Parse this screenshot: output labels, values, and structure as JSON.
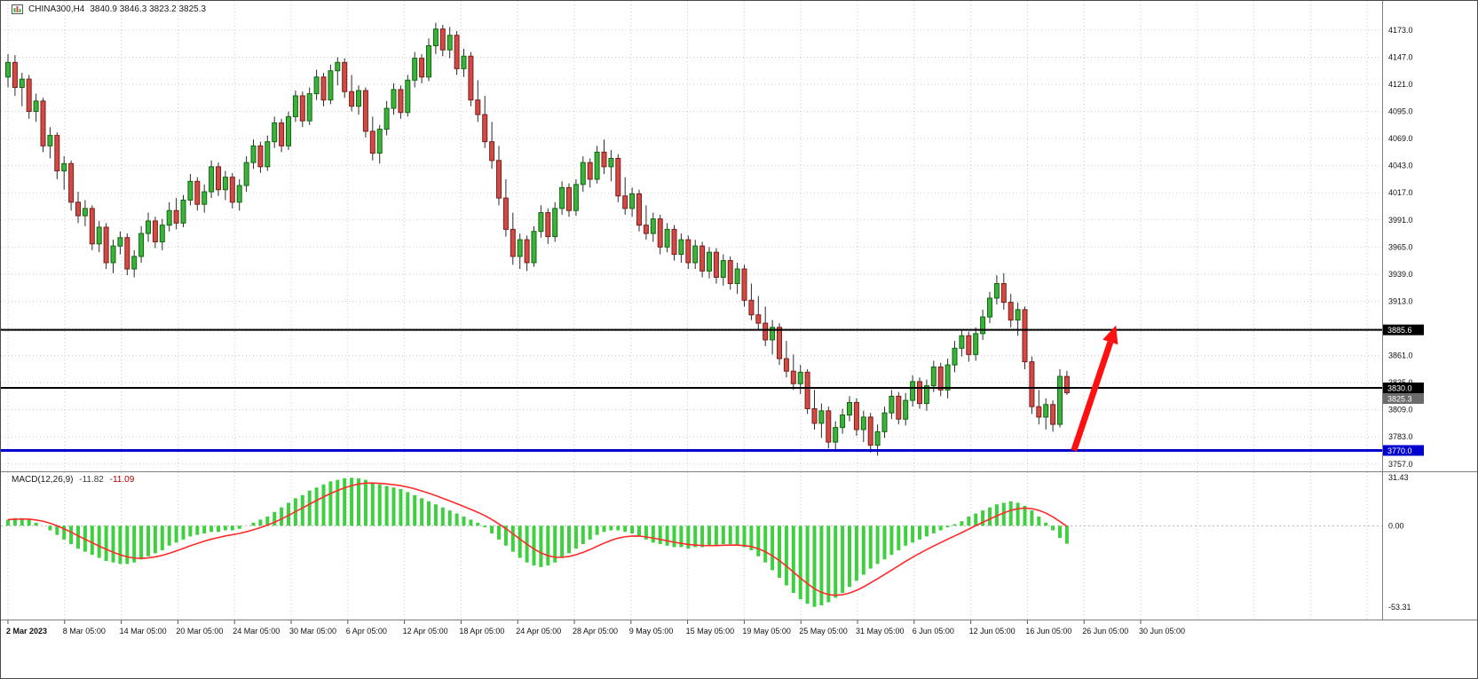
{
  "header": {
    "symbol": "CHINA300,H4",
    "ohlc_text": "3840.9 3846.3 3823.2 3825.3"
  },
  "macd_label": {
    "name": "MACD(12,26,9)",
    "macd_value": "-11.82",
    "signal_value": "-11.09"
  },
  "colors": {
    "bull": "#3CB23C",
    "bull_border": "#116611",
    "bear": "#D24A43",
    "bear_border": "#7A1E1E",
    "wick": "#2b2b2b",
    "grid": "#c9c9c9",
    "macd_hist": "#3FD03F",
    "macd_signal": "#FF2A2A",
    "arrow": "#FF0F0F",
    "level_black": "#000000",
    "level_blue": "#0000CD",
    "axis_text": "#111111"
  },
  "chart_data": [
    {
      "type": "candlestick",
      "title": "CHINA300,H4",
      "timeframe": "H4",
      "legend_position": "none",
      "grid": true,
      "ylim": [
        3750,
        4201
      ],
      "y_tick_labels": [
        "4173.0",
        "4147.0",
        "4121.0",
        "4095.0",
        "4069.0",
        "4043.0",
        "4017.0",
        "3991.0",
        "3965.0",
        "3939.0",
        "3913.0",
        "3887.0",
        "3861.0",
        "3835.0",
        "3809.0",
        "3783.0",
        "3757.0"
      ],
      "x_tick_labels": [
        "2 Mar 2023",
        "8 Mar 05:00",
        "14 Mar 05:00",
        "20 Mar 05:00",
        "24 Mar 05:00",
        "30 Mar 05:00",
        "6 Apr 05:00",
        "12 Apr 05:00",
        "18 Apr 05:00",
        "24 Apr 05:00",
        "28 Apr 05:00",
        "9 May 05:00",
        "15 May 05:00",
        "19 May 05:00",
        "25 May 05:00",
        "31 May 05:00",
        "6 Jun 05:00",
        "12 Jun 05:00",
        "16 Jun 05:00",
        "26 Jun 05:00",
        "30 Jun 05:00"
      ],
      "candles": [
        [
          4128,
          4150,
          4118,
          4142
        ],
        [
          4142,
          4149,
          4110,
          4118
        ],
        [
          4118,
          4132,
          4100,
          4126
        ],
        [
          4126,
          4130,
          4088,
          4095
        ],
        [
          4095,
          4112,
          4085,
          4105
        ],
        [
          4105,
          4108,
          4056,
          4062
        ],
        [
          4062,
          4080,
          4050,
          4072
        ],
        [
          4072,
          4075,
          4030,
          4038
        ],
        [
          4038,
          4052,
          4020,
          4045
        ],
        [
          4045,
          4048,
          4000,
          4008
        ],
        [
          4008,
          4018,
          3988,
          3995
        ],
        [
          3995,
          4010,
          3985,
          4002
        ],
        [
          4002,
          4005,
          3962,
          3968
        ],
        [
          3968,
          3990,
          3960,
          3984
        ],
        [
          3984,
          3988,
          3944,
          3950
        ],
        [
          3950,
          3972,
          3940,
          3966
        ],
        [
          3966,
          3980,
          3958,
          3974
        ],
        [
          3974,
          3978,
          3938,
          3944
        ],
        [
          3944,
          3962,
          3936,
          3956
        ],
        [
          3956,
          3985,
          3950,
          3978
        ],
        [
          3978,
          3998,
          3970,
          3990
        ],
        [
          3990,
          3994,
          3964,
          3970
        ],
        [
          3970,
          3992,
          3962,
          3986
        ],
        [
          3986,
          4008,
          3980,
          4000
        ],
        [
          4000,
          4012,
          3982,
          3988
        ],
        [
          3988,
          4015,
          3984,
          4010
        ],
        [
          4010,
          4035,
          4005,
          4028
        ],
        [
          4028,
          4032,
          4000,
          4006
        ],
        [
          4006,
          4025,
          3998,
          4018
        ],
        [
          4018,
          4048,
          4012,
          4042
        ],
        [
          4042,
          4046,
          4014,
          4020
        ],
        [
          4020,
          4038,
          4010,
          4032
        ],
        [
          4032,
          4036,
          4002,
          4008
        ],
        [
          4008,
          4030,
          4000,
          4024
        ],
        [
          4024,
          4052,
          4018,
          4046
        ],
        [
          4046,
          4068,
          4040,
          4062
        ],
        [
          4062,
          4066,
          4036,
          4042
        ],
        [
          4042,
          4072,
          4038,
          4066
        ],
        [
          4066,
          4090,
          4060,
          4084
        ],
        [
          4084,
          4088,
          4056,
          4062
        ],
        [
          4062,
          4095,
          4058,
          4090
        ],
        [
          4090,
          4115,
          4085,
          4110
        ],
        [
          4110,
          4114,
          4080,
          4086
        ],
        [
          4086,
          4118,
          4082,
          4112
        ],
        [
          4112,
          4135,
          4106,
          4128
        ],
        [
          4128,
          4132,
          4100,
          4106
        ],
        [
          4106,
          4140,
          4102,
          4134
        ],
        [
          4134,
          4147,
          4120,
          4142
        ],
        [
          4142,
          4146,
          4108,
          4114
        ],
        [
          4114,
          4130,
          4095,
          4100
        ],
        [
          4100,
          4120,
          4092,
          4115
        ],
        [
          4115,
          4118,
          4070,
          4076
        ],
        [
          4076,
          4090,
          4048,
          4055
        ],
        [
          4055,
          4082,
          4045,
          4078
        ],
        [
          4078,
          4105,
          4072,
          4098
        ],
        [
          4098,
          4122,
          4092,
          4116
        ],
        [
          4116,
          4120,
          4088,
          4094
        ],
        [
          4094,
          4130,
          4090,
          4125
        ],
        [
          4125,
          4152,
          4118,
          4146
        ],
        [
          4146,
          4150,
          4122,
          4128
        ],
        [
          4128,
          4165,
          4124,
          4158
        ],
        [
          4158,
          4180,
          4150,
          4174
        ],
        [
          4174,
          4178,
          4148,
          4154
        ],
        [
          4154,
          4176,
          4146,
          4168
        ],
        [
          4168,
          4172,
          4130,
          4136
        ],
        [
          4136,
          4155,
          4128,
          4148
        ],
        [
          4148,
          4152,
          4100,
          4106
        ],
        [
          4106,
          4125,
          4085,
          4092
        ],
        [
          4092,
          4110,
          4060,
          4066
        ],
        [
          4066,
          4085,
          4040,
          4048
        ],
        [
          4048,
          4062,
          4005,
          4012
        ],
        [
          4012,
          4030,
          3975,
          3982
        ],
        [
          3982,
          3998,
          3948,
          3956
        ],
        [
          3956,
          3978,
          3944,
          3972
        ],
        [
          3972,
          3976,
          3942,
          3950
        ],
        [
          3950,
          3985,
          3946,
          3980
        ],
        [
          3980,
          4005,
          3974,
          3998
        ],
        [
          3998,
          4002,
          3968,
          3975
        ],
        [
          3975,
          4008,
          3970,
          4002
        ],
        [
          4002,
          4028,
          3996,
          4022
        ],
        [
          4022,
          4026,
          3994,
          4000
        ],
        [
          4000,
          4030,
          3995,
          4025
        ],
        [
          4025,
          4052,
          4018,
          4046
        ],
        [
          4046,
          4050,
          4022,
          4030
        ],
        [
          4030,
          4062,
          4026,
          4056
        ],
        [
          4056,
          4068,
          4035,
          4042
        ],
        [
          4042,
          4058,
          4028,
          4050
        ],
        [
          4050,
          4054,
          4008,
          4014
        ],
        [
          4014,
          4032,
          3996,
          4002
        ],
        [
          4002,
          4022,
          3994,
          4016
        ],
        [
          4016,
          4020,
          3980,
          3986
        ],
        [
          3986,
          4005,
          3972,
          3978
        ],
        [
          3978,
          3998,
          3970,
          3992
        ],
        [
          3992,
          3996,
          3958,
          3965
        ],
        [
          3965,
          3988,
          3960,
          3982
        ],
        [
          3982,
          3986,
          3952,
          3958
        ],
        [
          3958,
          3978,
          3950,
          3972
        ],
        [
          3972,
          3976,
          3944,
          3950
        ],
        [
          3950,
          3972,
          3944,
          3966
        ],
        [
          3966,
          3970,
          3936,
          3942
        ],
        [
          3942,
          3965,
          3935,
          3960
        ],
        [
          3960,
          3964,
          3930,
          3936
        ],
        [
          3936,
          3958,
          3928,
          3952
        ],
        [
          3952,
          3956,
          3924,
          3930
        ],
        [
          3930,
          3950,
          3920,
          3944
        ],
        [
          3944,
          3948,
          3908,
          3914
        ],
        [
          3914,
          3930,
          3895,
          3900
        ],
        [
          3900,
          3918,
          3885,
          3892
        ],
        [
          3892,
          3908,
          3870,
          3876
        ],
        [
          3876,
          3895,
          3862,
          3888
        ],
        [
          3888,
          3892,
          3852,
          3858
        ],
        [
          3858,
          3875,
          3840,
          3846
        ],
        [
          3846,
          3862,
          3828,
          3834
        ],
        [
          3834,
          3852,
          3824,
          3845
        ],
        [
          3845,
          3848,
          3805,
          3810
        ],
        [
          3810,
          3828,
          3790,
          3796
        ],
        [
          3796,
          3815,
          3782,
          3808
        ],
        [
          3808,
          3812,
          3772,
          3778
        ],
        [
          3778,
          3798,
          3770,
          3792
        ],
        [
          3792,
          3810,
          3786,
          3804
        ],
        [
          3804,
          3822,
          3798,
          3816
        ],
        [
          3816,
          3820,
          3784,
          3790
        ],
        [
          3790,
          3808,
          3778,
          3802
        ],
        [
          3802,
          3806,
          3768,
          3775
        ],
        [
          3775,
          3795,
          3765,
          3788
        ],
        [
          3788,
          3812,
          3782,
          3806
        ],
        [
          3806,
          3828,
          3800,
          3822
        ],
        [
          3822,
          3826,
          3795,
          3800
        ],
        [
          3800,
          3825,
          3794,
          3818
        ],
        [
          3818,
          3842,
          3812,
          3836
        ],
        [
          3836,
          3840,
          3810,
          3815
        ],
        [
          3815,
          3838,
          3808,
          3832
        ],
        [
          3832,
          3856,
          3826,
          3850
        ],
        [
          3850,
          3854,
          3822,
          3828
        ],
        [
          3828,
          3858,
          3820,
          3852
        ],
        [
          3852,
          3875,
          3845,
          3868
        ],
        [
          3868,
          3886,
          3860,
          3880
        ],
        [
          3880,
          3884,
          3855,
          3862
        ],
        [
          3862,
          3888,
          3856,
          3882
        ],
        [
          3882,
          3905,
          3876,
          3898
        ],
        [
          3898,
          3922,
          3892,
          3916
        ],
        [
          3916,
          3938,
          3910,
          3930
        ],
        [
          3930,
          3940,
          3905,
          3912
        ],
        [
          3912,
          3920,
          3888,
          3895
        ],
        [
          3895,
          3912,
          3880,
          3905
        ],
        [
          3905,
          3908,
          3848,
          3855
        ],
        [
          3855,
          3860,
          3805,
          3812
        ],
        [
          3812,
          3828,
          3795,
          3802
        ],
        [
          3802,
          3820,
          3790,
          3814
        ],
        [
          3814,
          3818,
          3788,
          3795
        ],
        [
          3795,
          3848,
          3792,
          3841
        ],
        [
          3840.9,
          3846.3,
          3823.2,
          3825.3
        ]
      ],
      "hlines": [
        {
          "price": 3885.6,
          "color": "#000000",
          "width": 2
        },
        {
          "price": 3830.0,
          "color": "#000000",
          "width": 2
        },
        {
          "price": 3770.0,
          "color": "#0000CD",
          "width": 3
        }
      ],
      "price_tags": [
        {
          "text": "3885.6",
          "price": 3885.6,
          "bg": "#000000"
        },
        {
          "text": "3830.0",
          "price": 3830.0,
          "bg": "#000000"
        },
        {
          "text": "3825.3",
          "price": 3825.3,
          "bg": "#6b6b6b"
        },
        {
          "text": "3770.0",
          "price": 3770.0,
          "bg": "#0000CD"
        }
      ],
      "arrow": {
        "x1_bar": 152,
        "y1_price": 3770,
        "x2_bar": 158,
        "y2_price": 3890,
        "color": "#FF0F0F"
      }
    },
    {
      "type": "bar",
      "name": "MACD(12,26,9)",
      "current": {
        "macd": -11.82,
        "signal": -11.09
      },
      "ylim": [
        -61.3,
        35
      ],
      "y_tick_labels": [
        "31.43",
        "0.00",
        "-53.31"
      ],
      "bar_color": "#3FD03F",
      "signal_color": "#FF2A2A",
      "values": [
        4,
        5,
        5,
        4,
        2,
        0,
        -3,
        -6,
        -9,
        -12,
        -15,
        -17,
        -19,
        -21,
        -23,
        -24,
        -25,
        -25,
        -24,
        -22,
        -20,
        -18,
        -16,
        -13,
        -11,
        -9,
        -7,
        -6,
        -5,
        -4,
        -4,
        -3,
        -3,
        -2,
        0,
        2,
        4,
        6,
        9,
        12,
        15,
        18,
        20,
        23,
        25,
        27,
        29,
        30,
        31,
        31.4,
        31,
        30,
        28,
        27,
        26,
        25,
        24,
        22,
        20,
        18,
        16,
        14,
        12,
        10,
        8,
        6,
        4,
        2,
        -1,
        -5,
        -9,
        -13,
        -17,
        -21,
        -24,
        -26,
        -27,
        -26,
        -24,
        -21,
        -18,
        -15,
        -12,
        -9,
        -6,
        -4,
        -3,
        -3,
        -4,
        -5,
        -7,
        -9,
        -11,
        -12,
        -13,
        -14,
        -14,
        -15,
        -14,
        -14,
        -13,
        -13,
        -12,
        -12,
        -13,
        -14,
        -16,
        -20,
        -24,
        -29,
        -34,
        -39,
        -44,
        -48,
        -51,
        -53,
        -52,
        -50,
        -47,
        -44,
        -40,
        -36,
        -32,
        -28,
        -25,
        -22,
        -19,
        -16,
        -13,
        -11,
        -9,
        -7,
        -5,
        -3,
        -1,
        1,
        3,
        6,
        8,
        10,
        12,
        14,
        15,
        16,
        15,
        13,
        10,
        6,
        2,
        -3,
        -8,
        -11.8
      ]
    }
  ]
}
